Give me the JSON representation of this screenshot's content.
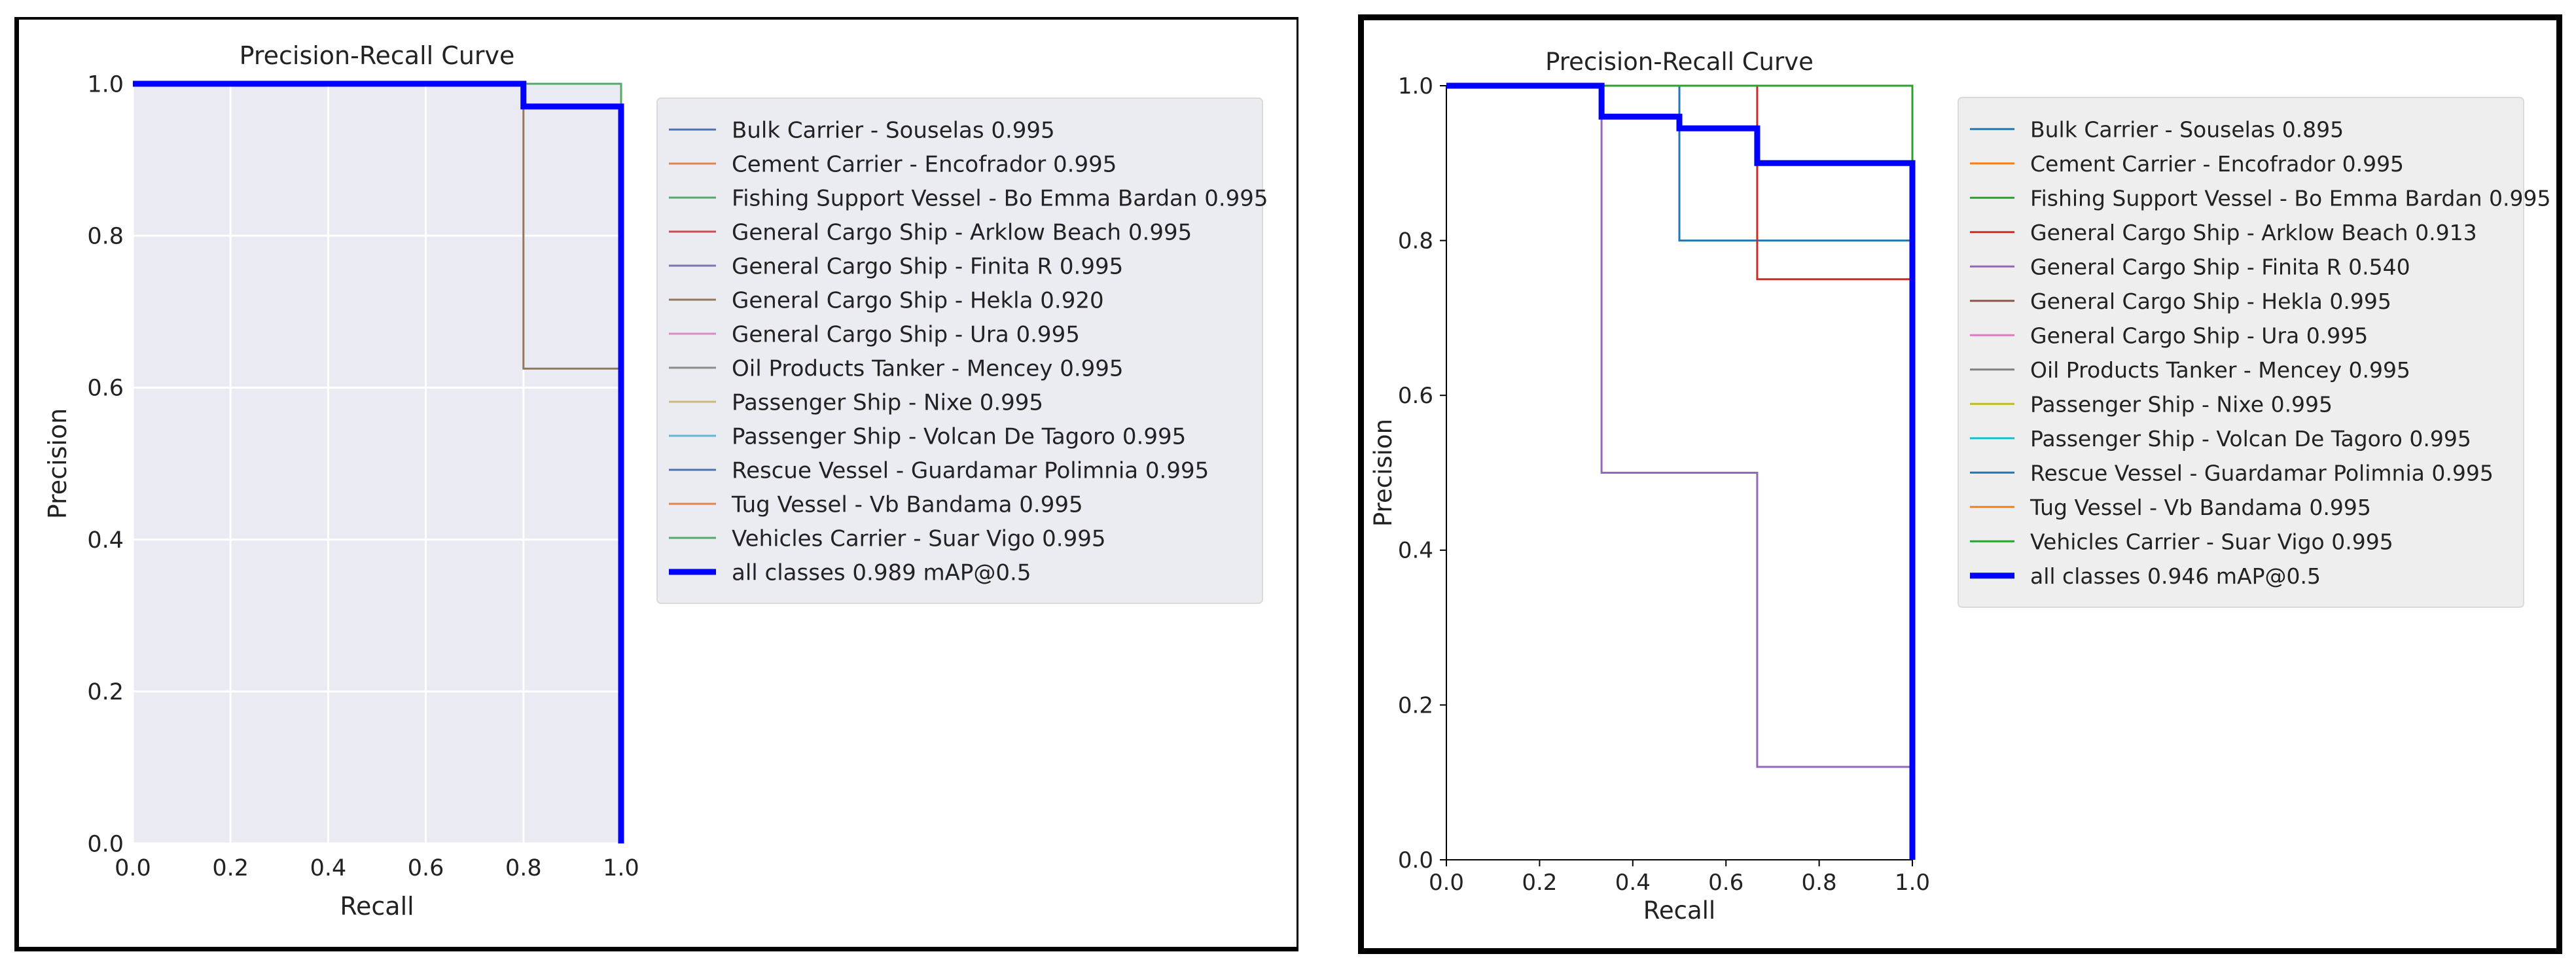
{
  "chart_data": [
    {
      "type": "line",
      "title": "Precision-Recall Curve",
      "xlabel": "Recall",
      "ylabel": "Precision",
      "xlim": [
        0,
        1
      ],
      "ylim": [
        0,
        1
      ],
      "grid": true,
      "background": "#eaeaf2",
      "xticks": [
        "0.0",
        "0.2",
        "0.4",
        "0.6",
        "0.8",
        "1.0"
      ],
      "yticks": [
        "0.0",
        "0.2",
        "0.4",
        "0.6",
        "0.8",
        "1.0"
      ],
      "legend_position": "outside-right",
      "series": [
        {
          "name": "Bulk Carrier - Souselas 0.995",
          "color": "#4c72b0",
          "x": [
            0,
            1,
            1
          ],
          "y": [
            1,
            1,
            0
          ]
        },
        {
          "name": "Cement Carrier - Encofrador 0.995",
          "color": "#dd8452",
          "x": [
            0,
            1,
            1
          ],
          "y": [
            1,
            1,
            0
          ]
        },
        {
          "name": "Fishing Support Vessel - Bo Emma Bardan 0.995",
          "color": "#55a868",
          "x": [
            0,
            1,
            1
          ],
          "y": [
            1,
            1,
            0
          ]
        },
        {
          "name": "General Cargo Ship - Arklow Beach 0.995",
          "color": "#c44e52",
          "x": [
            0,
            1,
            1
          ],
          "y": [
            1,
            1,
            0
          ]
        },
        {
          "name": "General Cargo Ship - Finita R 0.995",
          "color": "#8172b3",
          "x": [
            0,
            1,
            1
          ],
          "y": [
            1,
            1,
            0
          ]
        },
        {
          "name": "General Cargo Ship - Hekla 0.920",
          "color": "#937860",
          "x": [
            0,
            0.8,
            0.8,
            1,
            1
          ],
          "y": [
            1,
            1,
            0.625,
            0.625,
            0
          ]
        },
        {
          "name": "General Cargo Ship - Ura 0.995",
          "color": "#da8bc3",
          "x": [
            0,
            1,
            1
          ],
          "y": [
            1,
            1,
            0
          ]
        },
        {
          "name": "Oil Products Tanker - Mencey 0.995",
          "color": "#8c8c8c",
          "x": [
            0,
            1,
            1
          ],
          "y": [
            1,
            1,
            0
          ]
        },
        {
          "name": "Passenger Ship - Nixe 0.995",
          "color": "#ccb974",
          "x": [
            0,
            1,
            1
          ],
          "y": [
            1,
            1,
            0
          ]
        },
        {
          "name": "Passenger Ship - Volcan De Tagoro 0.995",
          "color": "#64b5cd",
          "x": [
            0,
            1,
            1
          ],
          "y": [
            1,
            1,
            0
          ]
        },
        {
          "name": "Rescue Vessel - Guardamar Polimnia 0.995",
          "color": "#4c72b0",
          "x": [
            0,
            1,
            1
          ],
          "y": [
            1,
            1,
            0
          ]
        },
        {
          "name": "Tug Vessel - Vb Bandama 0.995",
          "color": "#dd8452",
          "x": [
            0,
            1,
            1
          ],
          "y": [
            1,
            1,
            0
          ]
        },
        {
          "name": "Vehicles Carrier - Suar Vigo 0.995",
          "color": "#55a868",
          "x": [
            0,
            1,
            1
          ],
          "y": [
            1,
            1,
            0
          ]
        },
        {
          "name": "all classes 0.989 mAP@0.5",
          "color": "#0000ff",
          "bold": true,
          "x": [
            0,
            0.8,
            0.8,
            1,
            1
          ],
          "y": [
            1,
            1,
            0.97,
            0.97,
            0
          ]
        }
      ]
    },
    {
      "type": "line",
      "title": "Precision-Recall Curve",
      "xlabel": "Recall",
      "ylabel": "Precision",
      "xlim": [
        0,
        1
      ],
      "ylim": [
        0,
        1
      ],
      "grid": false,
      "background": "#ffffff",
      "xticks": [
        "0.0",
        "0.2",
        "0.4",
        "0.6",
        "0.8",
        "1.0"
      ],
      "yticks": [
        "0.0",
        "0.2",
        "0.4",
        "0.6",
        "0.8",
        "1.0"
      ],
      "legend_position": "outside-right",
      "series": [
        {
          "name": "Bulk Carrier - Souselas 0.895",
          "color": "#1f77b4",
          "x": [
            0,
            0.5,
            0.5,
            1,
            1
          ],
          "y": [
            1,
            1,
            0.8,
            0.8,
            0
          ]
        },
        {
          "name": "Cement Carrier - Encofrador 0.995",
          "color": "#ff7f0e",
          "x": [
            0,
            1,
            1
          ],
          "y": [
            1,
            1,
            0
          ]
        },
        {
          "name": "Fishing Support Vessel - Bo Emma Bardan 0.995",
          "color": "#2ca02c",
          "x": [
            0,
            1,
            1
          ],
          "y": [
            1,
            1,
            0
          ]
        },
        {
          "name": "General Cargo Ship - Arklow Beach 0.913",
          "color": "#d62728",
          "x": [
            0,
            0.667,
            0.667,
            1,
            1
          ],
          "y": [
            1,
            1,
            0.75,
            0.75,
            0
          ]
        },
        {
          "name": "General Cargo Ship - Finita R 0.540",
          "color": "#9467bd",
          "x": [
            0,
            0.333,
            0.333,
            0.667,
            0.667,
            1,
            1
          ],
          "y": [
            1,
            1,
            0.5,
            0.5,
            0.12,
            0.12,
            0
          ]
        },
        {
          "name": "General Cargo Ship - Hekla 0.995",
          "color": "#8c564b",
          "x": [
            0,
            1,
            1
          ],
          "y": [
            1,
            1,
            0
          ]
        },
        {
          "name": "General Cargo Ship - Ura 0.995",
          "color": "#e377c2",
          "x": [
            0,
            1,
            1
          ],
          "y": [
            1,
            1,
            0
          ]
        },
        {
          "name": "Oil Products Tanker - Mencey 0.995",
          "color": "#7f7f7f",
          "x": [
            0,
            1,
            1
          ],
          "y": [
            1,
            1,
            0
          ]
        },
        {
          "name": "Passenger Ship - Nixe 0.995",
          "color": "#bcbd22",
          "x": [
            0,
            1,
            1
          ],
          "y": [
            1,
            1,
            0
          ]
        },
        {
          "name": "Passenger Ship - Volcan De Tagoro 0.995",
          "color": "#17becf",
          "x": [
            0,
            1,
            1
          ],
          "y": [
            1,
            1,
            0
          ]
        },
        {
          "name": "Rescue Vessel - Guardamar Polimnia 0.995",
          "color": "#1f77b4",
          "x": [
            0,
            1,
            1
          ],
          "y": [
            1,
            1,
            0
          ]
        },
        {
          "name": "Tug Vessel - Vb Bandama 0.995",
          "color": "#ff7f0e",
          "x": [
            0,
            1,
            1
          ],
          "y": [
            1,
            1,
            0
          ]
        },
        {
          "name": "Vehicles Carrier - Suar Vigo 0.995",
          "color": "#2ca02c",
          "x": [
            0,
            1,
            1
          ],
          "y": [
            1,
            1,
            0
          ]
        },
        {
          "name": "all classes 0.946 mAP@0.5",
          "color": "#0000ff",
          "bold": true,
          "x": [
            0,
            0.333,
            0.333,
            0.5,
            0.5,
            0.667,
            0.667,
            1,
            1
          ],
          "y": [
            1,
            1,
            0.96,
            0.96,
            0.945,
            0.945,
            0.9,
            0.9,
            0
          ]
        }
      ]
    }
  ]
}
